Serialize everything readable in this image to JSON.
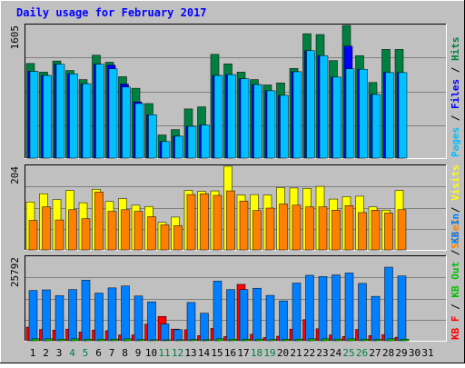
{
  "chart_data": [
    {
      "type": "bar",
      "title": "Daily usage for February 2017",
      "yaxis_max_label": "1605",
      "ylim": [
        0,
        1605
      ],
      "right_label_parts": [
        {
          "text": "Pages",
          "color": "#00c0ff"
        },
        {
          "text": " / ",
          "color": "#000000"
        },
        {
          "text": "Files",
          "color": "#0000ff"
        },
        {
          "text": " / ",
          "color": "#000000"
        },
        {
          "text": "Hits",
          "color": "#008040"
        }
      ],
      "categories": [
        "1",
        "2",
        "3",
        "4",
        "5",
        "6",
        "7",
        "8",
        "9",
        "10",
        "11",
        "12",
        "13",
        "14",
        "15",
        "16",
        "17",
        "18",
        "19",
        "20",
        "21",
        "22",
        "23",
        "24",
        "25",
        "26",
        "27",
        "28",
        "29",
        "30",
        "31"
      ],
      "series": [
        {
          "name": "Hits",
          "color": "#008040",
          "values": [
            1145,
            1040,
            1175,
            1060,
            950,
            1245,
            1160,
            985,
            845,
            660,
            280,
            345,
            595,
            620,
            1255,
            1140,
            1040,
            950,
            885,
            910,
            1085,
            1505,
            1495,
            1180,
            1605,
            1240,
            915,
            1315,
            1315,
            null,
            null
          ]
        },
        {
          "name": "Files",
          "color": "#0000ff",
          "values": [
            1050,
            1000,
            1135,
            1020,
            900,
            1135,
            1125,
            895,
            680,
            525,
            200,
            265,
            385,
            400,
            1000,
            1010,
            960,
            890,
            815,
            760,
            1045,
            1300,
            1240,
            980,
            1355,
            1075,
            770,
            1035,
            1035,
            null,
            null
          ]
        },
        {
          "name": "Pages",
          "color": "#00c0ff",
          "values": [
            1050,
            1000,
            1135,
            1020,
            900,
            1135,
            1080,
            860,
            660,
            525,
            200,
            265,
            385,
            400,
            1000,
            1010,
            960,
            890,
            815,
            760,
            1045,
            1300,
            1240,
            980,
            1080,
            1075,
            770,
            1035,
            1035,
            null,
            null
          ]
        }
      ]
    },
    {
      "type": "bar",
      "yaxis_max_label": "204",
      "ylim": [
        0,
        204
      ],
      "right_label_parts": [
        {
          "text": "Sites",
          "color": "#ff8000"
        },
        {
          "text": " / ",
          "color": "#000000"
        },
        {
          "text": "Visits",
          "color": "#ffff00"
        }
      ],
      "categories": [
        "1",
        "2",
        "3",
        "4",
        "5",
        "6",
        "7",
        "8",
        "9",
        "10",
        "11",
        "12",
        "13",
        "14",
        "15",
        "16",
        "17",
        "18",
        "19",
        "20",
        "21",
        "22",
        "23",
        "24",
        "25",
        "26",
        "27",
        "28",
        "29",
        "30",
        "31"
      ],
      "series": [
        {
          "name": "Visits",
          "color": "#ffff00",
          "values": [
            117,
            137,
            123,
            145,
            115,
            148,
            118,
            125,
            109,
            106,
            67,
            80,
            145,
            143,
            144,
            204,
            134,
            135,
            134,
            152,
            151,
            150,
            155,
            124,
            130,
            131,
            105,
            97,
            145,
            null,
            null
          ]
        },
        {
          "name": "Sites",
          "color": "#ff8000",
          "values": [
            72,
            105,
            73,
            98,
            76,
            141,
            94,
            98,
            94,
            81,
            61,
            59,
            135,
            137,
            133,
            144,
            119,
            96,
            102,
            112,
            109,
            105,
            105,
            97,
            108,
            91,
            97,
            90,
            98,
            null,
            null
          ]
        }
      ]
    },
    {
      "type": "bar",
      "yaxis_max_label": "25792",
      "ylim": [
        0,
        25792
      ],
      "right_label_parts": [
        {
          "text": "KB F",
          "color": "#ff0000"
        },
        {
          "text": " / ",
          "color": "#000000"
        },
        {
          "text": "KB Out",
          "color": "#00c000"
        },
        {
          "text": " / ",
          "color": "#000000"
        },
        {
          "text": "KB In",
          "color": "#0080ff"
        }
      ],
      "categories": [
        "1",
        "2",
        "3",
        "4",
        "5",
        "6",
        "7",
        "8",
        "9",
        "10",
        "11",
        "12",
        "13",
        "14",
        "15",
        "16",
        "17",
        "18",
        "19",
        "20",
        "21",
        "22",
        "23",
        "24",
        "25",
        "26",
        "27",
        "28",
        "29",
        "30",
        "31"
      ],
      "series": [
        {
          "name": "KB F",
          "color": "#ff0000",
          "values": [
            4200,
            3500,
            3300,
            3600,
            2700,
            3300,
            3100,
            1800,
            1800,
            5100,
            7500,
            3600,
            3400,
            1600,
            3800,
            1300,
            17400,
            2000,
            1000,
            1400,
            3600,
            6500,
            3700,
            1800,
            1300,
            3500,
            1600,
            1900,
            1100,
            null,
            null
          ]
        },
        {
          "name": "KB In",
          "color": "#0080ff",
          "values": [
            15500,
            15700,
            13900,
            15800,
            18700,
            14700,
            16300,
            16900,
            13800,
            12000,
            5200,
            3400,
            11800,
            8500,
            18400,
            15800,
            15800,
            16200,
            14000,
            12300,
            17800,
            20200,
            19800,
            20300,
            20900,
            17700,
            13700,
            22700,
            20000,
            null,
            null
          ]
        },
        {
          "name": "KB Out",
          "color": "#00c000",
          "values": [
            600,
            600,
            500,
            600,
            500,
            500,
            500,
            600,
            400,
            300,
            200,
            300,
            400,
            300,
            600,
            500,
            500,
            500,
            400,
            500,
            500,
            600,
            600,
            500,
            600,
            500,
            400,
            600,
            500,
            null,
            null
          ]
        }
      ]
    }
  ],
  "x_labels": [
    {
      "text": "1",
      "color": "#000000"
    },
    {
      "text": "2",
      "color": "#000000"
    },
    {
      "text": "3",
      "color": "#000000"
    },
    {
      "text": "4",
      "color": "#008040"
    },
    {
      "text": "5",
      "color": "#008040"
    },
    {
      "text": "6",
      "color": "#000000"
    },
    {
      "text": "7",
      "color": "#000000"
    },
    {
      "text": "8",
      "color": "#000000"
    },
    {
      "text": "9",
      "color": "#000000"
    },
    {
      "text": "10",
      "color": "#000000"
    },
    {
      "text": "11",
      "color": "#008040"
    },
    {
      "text": "12",
      "color": "#008040"
    },
    {
      "text": "13",
      "color": "#000000"
    },
    {
      "text": "14",
      "color": "#000000"
    },
    {
      "text": "15",
      "color": "#000000"
    },
    {
      "text": "16",
      "color": "#000000"
    },
    {
      "text": "17",
      "color": "#000000"
    },
    {
      "text": "18",
      "color": "#008040"
    },
    {
      "text": "19",
      "color": "#008040"
    },
    {
      "text": "20",
      "color": "#000000"
    },
    {
      "text": "21",
      "color": "#000000"
    },
    {
      "text": "22",
      "color": "#000000"
    },
    {
      "text": "23",
      "color": "#000000"
    },
    {
      "text": "24",
      "color": "#000000"
    },
    {
      "text": "25",
      "color": "#008040"
    },
    {
      "text": "26",
      "color": "#008040"
    },
    {
      "text": "27",
      "color": "#000000"
    },
    {
      "text": "28",
      "color": "#000000"
    },
    {
      "text": "29",
      "color": "#000000"
    },
    {
      "text": "30",
      "color": "#000000"
    },
    {
      "text": "31",
      "color": "#000000"
    }
  ],
  "colors": {
    "background": "#c0c0c0",
    "plot_background": "#c0c0c0",
    "title": "#0000ff",
    "grid": "#808080"
  }
}
